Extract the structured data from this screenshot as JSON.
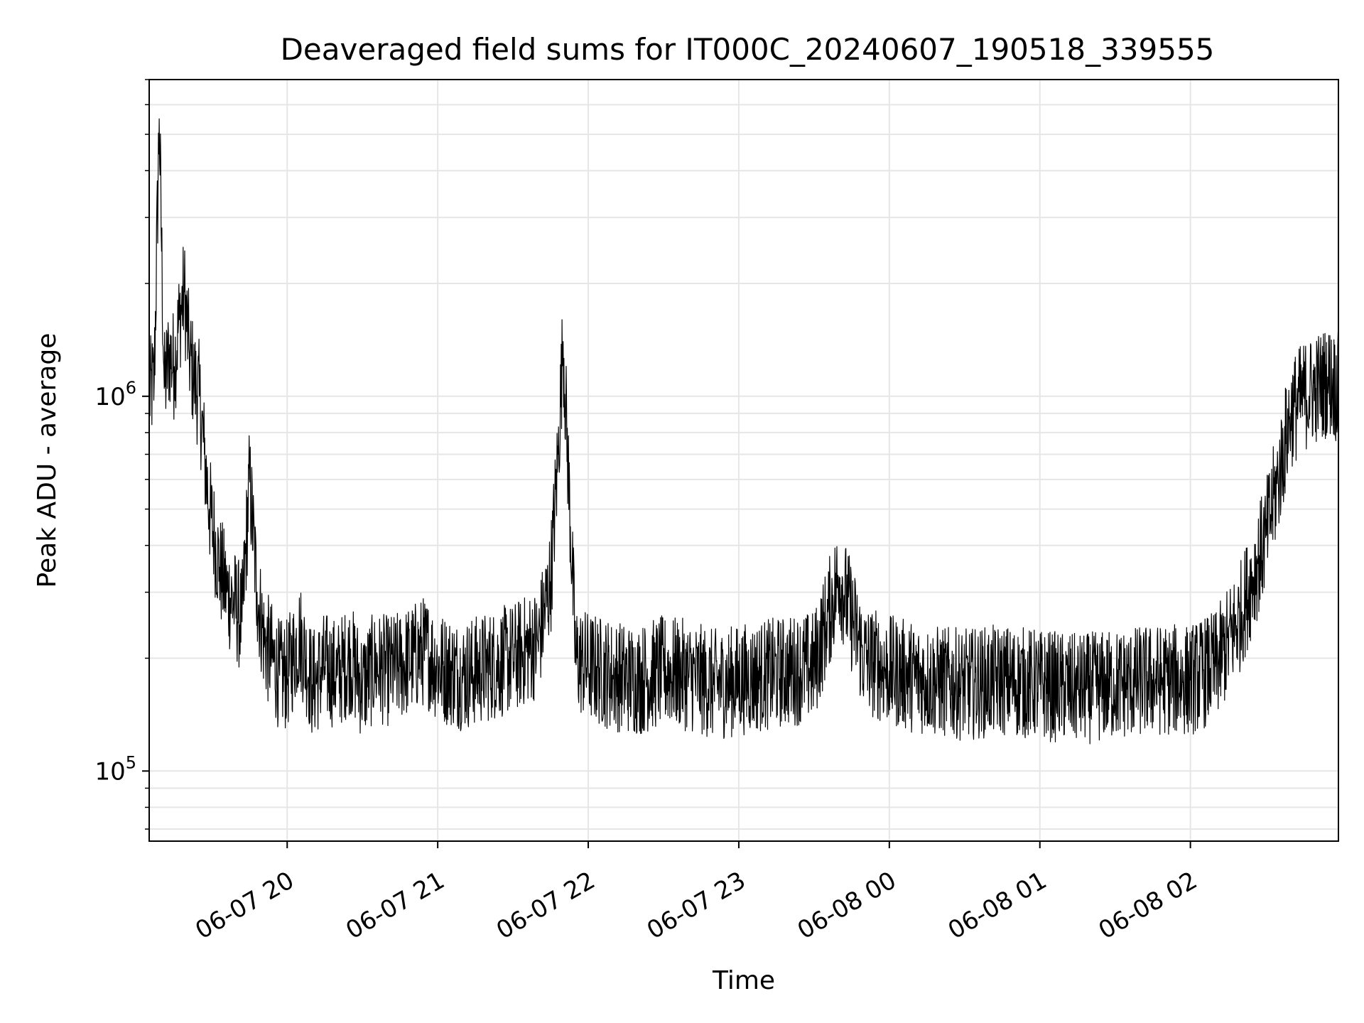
{
  "chart_data": {
    "type": "line",
    "title": "Deaveraged field sums for IT000C_20240607_190518_339555",
    "xlabel": "Time",
    "ylabel": "Peak ADU - average",
    "yscale": "log",
    "xlim": [
      "2024-06-07 19:05",
      "2024-06-08 02:59"
    ],
    "ylim": [
      65000,
      7000000
    ],
    "grid": true,
    "line_color": "#000000",
    "grid_color": "#e6e6e6",
    "x_ticks": [
      {
        "t": "2024-06-07 20:00",
        "label": "06-07 20"
      },
      {
        "t": "2024-06-07 21:00",
        "label": "06-07 21"
      },
      {
        "t": "2024-06-07 22:00",
        "label": "06-07 22"
      },
      {
        "t": "2024-06-07 23:00",
        "label": "06-07 23"
      },
      {
        "t": "2024-06-08 00:00",
        "label": "06-08 00"
      },
      {
        "t": "2024-06-08 01:00",
        "label": "06-08 01"
      },
      {
        "t": "2024-06-08 02:00",
        "label": "06-08 02"
      }
    ],
    "y_ticks": [
      {
        "v": 100000,
        "base": "10",
        "exp": "5"
      },
      {
        "v": 1000000,
        "base": "10",
        "exp": "6"
      }
    ],
    "series": [
      {
        "x": [
          "2024-06-07 19:05",
          "2024-06-07 19:07",
          "2024-06-07 19:09",
          "2024-06-07 19:11",
          "2024-06-07 19:13",
          "2024-06-07 19:15",
          "2024-06-07 19:17",
          "2024-06-07 19:19",
          "2024-06-07 19:21",
          "2024-06-07 19:23",
          "2024-06-07 19:25",
          "2024-06-07 19:27",
          "2024-06-07 19:29",
          "2024-06-07 19:31",
          "2024-06-07 19:33",
          "2024-06-07 19:36",
          "2024-06-07 19:39",
          "2024-06-07 19:42",
          "2024-06-07 19:45",
          "2024-06-07 19:48",
          "2024-06-07 19:51",
          "2024-06-07 19:54",
          "2024-06-07 19:57",
          "2024-06-07 20:00",
          "2024-06-07 20:05",
          "2024-06-07 20:10",
          "2024-06-07 20:15",
          "2024-06-07 20:20",
          "2024-06-07 20:25",
          "2024-06-07 20:30",
          "2024-06-07 20:35",
          "2024-06-07 20:40",
          "2024-06-07 20:45",
          "2024-06-07 20:50",
          "2024-06-07 20:55",
          "2024-06-07 21:00",
          "2024-06-07 21:10",
          "2024-06-07 21:20",
          "2024-06-07 21:30",
          "2024-06-07 21:40",
          "2024-06-07 21:45",
          "2024-06-07 21:48",
          "2024-06-07 21:50",
          "2024-06-07 21:55",
          "2024-06-07 22:00",
          "2024-06-07 22:10",
          "2024-06-07 22:20",
          "2024-06-07 22:30",
          "2024-06-07 22:40",
          "2024-06-07 22:50",
          "2024-06-07 23:00",
          "2024-06-07 23:10",
          "2024-06-07 23:20",
          "2024-06-07 23:30",
          "2024-06-07 23:35",
          "2024-06-07 23:40",
          "2024-06-07 23:50",
          "2024-06-08 00:00",
          "2024-06-08 00:15",
          "2024-06-08 00:30",
          "2024-06-08 00:45",
          "2024-06-08 01:00",
          "2024-06-08 01:15",
          "2024-06-08 01:30",
          "2024-06-08 01:45",
          "2024-06-08 02:00",
          "2024-06-08 02:10",
          "2024-06-08 02:15",
          "2024-06-08 02:20",
          "2024-06-08 02:25",
          "2024-06-08 02:30",
          "2024-06-08 02:35",
          "2024-06-08 02:40",
          "2024-06-08 02:45",
          "2024-06-08 02:50",
          "2024-06-08 02:55",
          "2024-06-08 02:59"
        ],
        "y": [
          1000000,
          1100000,
          5500000,
          1050000,
          1300000,
          1200000,
          1600000,
          1900000,
          1300000,
          1100000,
          1000000,
          700000,
          500000,
          420000,
          350000,
          300000,
          280000,
          250000,
          600000,
          300000,
          220000,
          200000,
          180000,
          180000,
          230000,
          170000,
          190000,
          180000,
          200000,
          170000,
          190000,
          185000,
          190000,
          200000,
          210000,
          190000,
          180000,
          190000,
          200000,
          220000,
          320000,
          700000,
          1400000,
          200000,
          190000,
          180000,
          175000,
          185000,
          180000,
          170000,
          175000,
          180000,
          185000,
          190000,
          250000,
          330000,
          200000,
          185000,
          175000,
          170000,
          175000,
          170000,
          165000,
          170000,
          175000,
          175000,
          190000,
          220000,
          260000,
          330000,
          420000,
          600000,
          900000,
          1000000,
          1050000,
          1100000,
          1050000
        ]
      }
    ]
  }
}
